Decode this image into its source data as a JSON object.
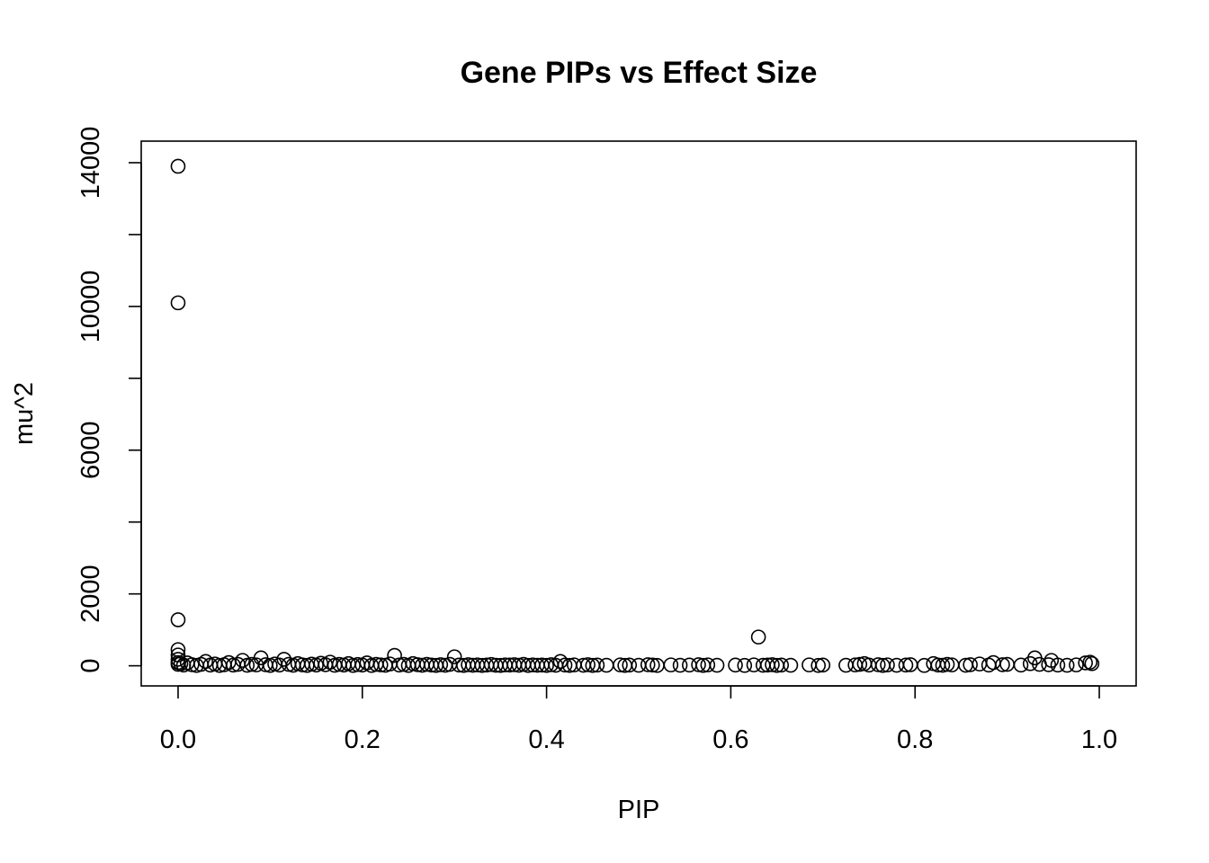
{
  "chart_data": {
    "type": "scatter",
    "title": "Gene PIPs vs Effect Size",
    "xlabel": "PIP",
    "ylabel": "mu^2",
    "xlim": [
      -0.04,
      1.04
    ],
    "ylim": [
      -560,
      14600
    ],
    "x_ticks": [
      0.0,
      0.2,
      0.4,
      0.6,
      0.8,
      1.0
    ],
    "x_tick_labels": [
      "0.0",
      "0.2",
      "0.4",
      "0.6",
      "0.8",
      "1.0"
    ],
    "y_ticks": [
      0,
      2000,
      4000,
      6000,
      8000,
      10000,
      12000,
      14000
    ],
    "y_tick_labels": [
      "0",
      "2000",
      "",
      "6000",
      "",
      "10000",
      "",
      "14000"
    ],
    "grid": false,
    "legend": "none",
    "marker": "open-circle",
    "points": [
      [
        0.0,
        13900
      ],
      [
        0.0,
        10100
      ],
      [
        0.0,
        1280
      ],
      [
        0.0,
        450
      ],
      [
        0.0,
        300
      ],
      [
        0.0,
        180
      ],
      [
        0.0,
        90
      ],
      [
        0.0,
        40
      ],
      [
        0.003,
        60
      ],
      [
        0.006,
        20
      ],
      [
        0.01,
        80
      ],
      [
        0.015,
        30
      ],
      [
        0.02,
        10
      ],
      [
        0.025,
        40
      ],
      [
        0.03,
        120
      ],
      [
        0.035,
        20
      ],
      [
        0.04,
        50
      ],
      [
        0.045,
        10
      ],
      [
        0.05,
        30
      ],
      [
        0.055,
        90
      ],
      [
        0.06,
        20
      ],
      [
        0.065,
        40
      ],
      [
        0.07,
        150
      ],
      [
        0.075,
        15
      ],
      [
        0.08,
        40
      ],
      [
        0.085,
        25
      ],
      [
        0.09,
        220
      ],
      [
        0.095,
        30
      ],
      [
        0.1,
        10
      ],
      [
        0.105,
        50
      ],
      [
        0.11,
        20
      ],
      [
        0.115,
        180
      ],
      [
        0.12,
        40
      ],
      [
        0.125,
        15
      ],
      [
        0.13,
        60
      ],
      [
        0.135,
        25
      ],
      [
        0.14,
        10
      ],
      [
        0.145,
        45
      ],
      [
        0.15,
        20
      ],
      [
        0.155,
        70
      ],
      [
        0.16,
        30
      ],
      [
        0.165,
        100
      ],
      [
        0.17,
        15
      ],
      [
        0.175,
        40
      ],
      [
        0.18,
        20
      ],
      [
        0.185,
        60
      ],
      [
        0.19,
        10
      ],
      [
        0.195,
        35
      ],
      [
        0.2,
        20
      ],
      [
        0.205,
        80
      ],
      [
        0.21,
        10
      ],
      [
        0.215,
        40
      ],
      [
        0.22,
        25
      ],
      [
        0.225,
        15
      ],
      [
        0.23,
        50
      ],
      [
        0.235,
        290
      ],
      [
        0.24,
        20
      ],
      [
        0.245,
        40
      ],
      [
        0.25,
        10
      ],
      [
        0.255,
        60
      ],
      [
        0.26,
        30
      ],
      [
        0.265,
        15
      ],
      [
        0.27,
        40
      ],
      [
        0.275,
        20
      ],
      [
        0.28,
        10
      ],
      [
        0.285,
        30
      ],
      [
        0.29,
        15
      ],
      [
        0.295,
        40
      ],
      [
        0.3,
        250
      ],
      [
        0.305,
        20
      ],
      [
        0.31,
        10
      ],
      [
        0.315,
        30
      ],
      [
        0.32,
        15
      ],
      [
        0.325,
        25
      ],
      [
        0.33,
        10
      ],
      [
        0.335,
        20
      ],
      [
        0.34,
        35
      ],
      [
        0.345,
        15
      ],
      [
        0.35,
        10
      ],
      [
        0.355,
        25
      ],
      [
        0.36,
        20
      ],
      [
        0.365,
        30
      ],
      [
        0.37,
        15
      ],
      [
        0.375,
        40
      ],
      [
        0.38,
        10
      ],
      [
        0.385,
        25
      ],
      [
        0.39,
        15
      ],
      [
        0.395,
        20
      ],
      [
        0.4,
        10
      ],
      [
        0.405,
        30
      ],
      [
        0.41,
        15
      ],
      [
        0.415,
        120
      ],
      [
        0.42,
        20
      ],
      [
        0.425,
        10
      ],
      [
        0.43,
        25
      ],
      [
        0.44,
        15
      ],
      [
        0.445,
        30
      ],
      [
        0.45,
        10
      ],
      [
        0.455,
        20
      ],
      [
        0.465,
        15
      ],
      [
        0.48,
        25
      ],
      [
        0.485,
        10
      ],
      [
        0.49,
        20
      ],
      [
        0.5,
        15
      ],
      [
        0.51,
        30
      ],
      [
        0.515,
        20
      ],
      [
        0.52,
        10
      ],
      [
        0.535,
        25
      ],
      [
        0.545,
        15
      ],
      [
        0.555,
        20
      ],
      [
        0.565,
        30
      ],
      [
        0.57,
        10
      ],
      [
        0.575,
        25
      ],
      [
        0.585,
        15
      ],
      [
        0.605,
        20
      ],
      [
        0.615,
        10
      ],
      [
        0.625,
        25
      ],
      [
        0.63,
        800
      ],
      [
        0.635,
        15
      ],
      [
        0.64,
        20
      ],
      [
        0.645,
        30
      ],
      [
        0.65,
        10
      ],
      [
        0.655,
        20
      ],
      [
        0.665,
        15
      ],
      [
        0.685,
        25
      ],
      [
        0.695,
        10
      ],
      [
        0.7,
        20
      ],
      [
        0.725,
        15
      ],
      [
        0.735,
        25
      ],
      [
        0.74,
        40
      ],
      [
        0.745,
        60
      ],
      [
        0.75,
        20
      ],
      [
        0.76,
        30
      ],
      [
        0.765,
        10
      ],
      [
        0.77,
        25
      ],
      [
        0.78,
        15
      ],
      [
        0.79,
        20
      ],
      [
        0.795,
        30
      ],
      [
        0.81,
        10
      ],
      [
        0.82,
        60
      ],
      [
        0.825,
        20
      ],
      [
        0.83,
        15
      ],
      [
        0.835,
        40
      ],
      [
        0.84,
        25
      ],
      [
        0.855,
        15
      ],
      [
        0.86,
        30
      ],
      [
        0.87,
        50
      ],
      [
        0.88,
        20
      ],
      [
        0.885,
        90
      ],
      [
        0.895,
        30
      ],
      [
        0.9,
        40
      ],
      [
        0.915,
        20
      ],
      [
        0.925,
        60
      ],
      [
        0.93,
        220
      ],
      [
        0.935,
        40
      ],
      [
        0.945,
        30
      ],
      [
        0.948,
        150
      ],
      [
        0.955,
        20
      ],
      [
        0.965,
        15
      ],
      [
        0.975,
        25
      ],
      [
        0.985,
        80
      ],
      [
        0.99,
        100
      ],
      [
        0.992,
        60
      ]
    ]
  }
}
